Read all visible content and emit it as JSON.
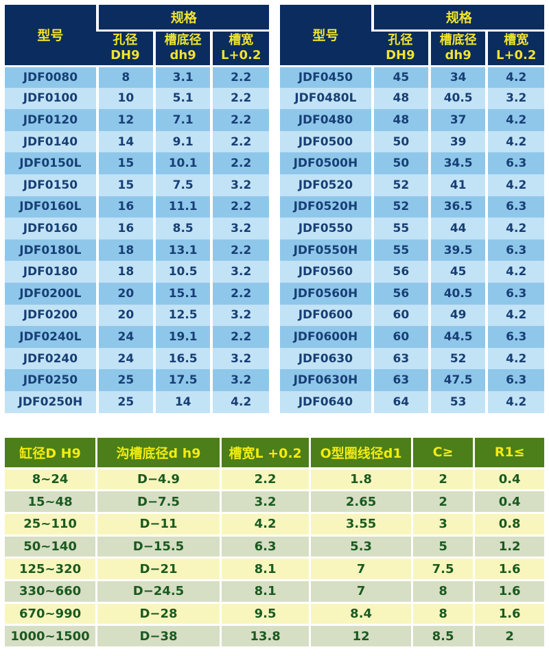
{
  "colors": {
    "header_navy": "#0a2c5e",
    "header_yellow_text": "#f2e42e",
    "row_blue_dark": "#8fc7ea",
    "row_blue_light": "#c2e2f6",
    "row_text_navy": "#173f75",
    "groove_header_green": "#4c7e1a",
    "groove_header_yellow_text": "#f2ec10",
    "groove_row_yellow": "#f8f6bd",
    "groove_row_sage": "#d6dec4",
    "groove_text_green": "#1a5a20",
    "page_background": "#ffffff"
  },
  "top_tables": {
    "header": {
      "model": "型号",
      "spec": "规格",
      "sub": [
        "孔径\nDH9",
        "槽底径\ndh9",
        "槽宽\nL+0.2"
      ]
    },
    "left": {
      "rows": [
        [
          "JDF0080",
          "8",
          "3.1",
          "2.2"
        ],
        [
          "JDF0100",
          "10",
          "5.1",
          "2.2"
        ],
        [
          "JDF0120",
          "12",
          "7.1",
          "2.2"
        ],
        [
          "JDF0140",
          "14",
          "9.1",
          "2.2"
        ],
        [
          "JDF0150L",
          "15",
          "10.1",
          "2.2"
        ],
        [
          "JDF0150",
          "15",
          "7.5",
          "3.2"
        ],
        [
          "JDF0160L",
          "16",
          "11.1",
          "2.2"
        ],
        [
          "JDF0160",
          "16",
          "8.5",
          "3.2"
        ],
        [
          "JDF0180L",
          "18",
          "13.1",
          "2.2"
        ],
        [
          "JDF0180",
          "18",
          "10.5",
          "3.2"
        ],
        [
          "JDF0200L",
          "20",
          "15.1",
          "2.2"
        ],
        [
          "JDF0200",
          "20",
          "12.5",
          "3.2"
        ],
        [
          "JDF0240L",
          "24",
          "19.1",
          "2.2"
        ],
        [
          "JDF0240",
          "24",
          "16.5",
          "3.2"
        ],
        [
          "JDF0250",
          "25",
          "17.5",
          "3.2"
        ],
        [
          "JDF0250H",
          "25",
          "14",
          "4.2"
        ]
      ]
    },
    "right": {
      "rows": [
        [
          "JDF0450",
          "45",
          "34",
          "4.2"
        ],
        [
          "JDF0480L",
          "48",
          "40.5",
          "3.2"
        ],
        [
          "JDF0480",
          "48",
          "37",
          "4.2"
        ],
        [
          "JDF0500",
          "50",
          "39",
          "4.2"
        ],
        [
          "JDF0500H",
          "50",
          "34.5",
          "6.3"
        ],
        [
          "JDF0520",
          "52",
          "41",
          "4.2"
        ],
        [
          "JDF0520H",
          "52",
          "36.5",
          "6.3"
        ],
        [
          "JDF0550",
          "55",
          "44",
          "4.2"
        ],
        [
          "JDF0550H",
          "55",
          "39.5",
          "6.3"
        ],
        [
          "JDF0560",
          "56",
          "45",
          "4.2"
        ],
        [
          "JDF0560H",
          "56",
          "40.5",
          "6.3"
        ],
        [
          "JDF0600",
          "60",
          "49",
          "4.2"
        ],
        [
          "JDF0600H",
          "60",
          "44.5",
          "6.3"
        ],
        [
          "JDF0630",
          "63",
          "52",
          "4.2"
        ],
        [
          "JDF0630H",
          "63",
          "47.5",
          "6.3"
        ],
        [
          "JDF0640",
          "64",
          "53",
          "4.2"
        ]
      ]
    }
  },
  "groove_table": {
    "headers": [
      "缸径D H9",
      "沟槽底径d h9",
      "槽宽L +0.2",
      "O型圈线径d1",
      "C≥",
      "R1≤"
    ],
    "rows": [
      [
        "8~24",
        "D−4.9",
        "2.2",
        "1.8",
        "2",
        "0.4"
      ],
      [
        "15~48",
        "D−7.5",
        "3.2",
        "2.65",
        "2",
        "0.4"
      ],
      [
        "25~110",
        "D−11",
        "4.2",
        "3.55",
        "3",
        "0.8"
      ],
      [
        "50~140",
        "D−15.5",
        "6.3",
        "5.3",
        "5",
        "1.2"
      ],
      [
        "125~320",
        "D−21",
        "8.1",
        "7",
        "7.5",
        "1.6"
      ],
      [
        "330~660",
        "D−24.5",
        "8.1",
        "7",
        "8",
        "1.6"
      ],
      [
        "670~990",
        "D−28",
        "9.5",
        "8.4",
        "8",
        "1.6"
      ],
      [
        "1000~1500",
        "D−38",
        "13.8",
        "12",
        "8.5",
        "2"
      ]
    ]
  }
}
